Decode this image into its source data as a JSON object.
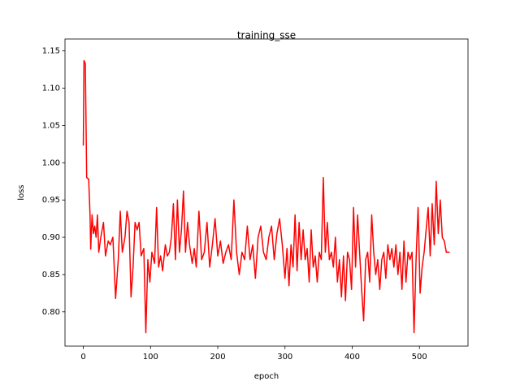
{
  "chart_data": {
    "type": "line",
    "title": "training_sse",
    "x_label": "epoch",
    "y_label": "loss",
    "color": "#ff0000",
    "x": [
      0,
      1,
      3,
      5,
      8,
      10,
      11,
      13,
      15,
      17,
      19,
      21,
      23,
      26,
      30,
      33,
      37,
      40,
      44,
      48,
      52,
      55,
      58,
      62,
      65,
      68,
      71,
      74,
      77,
      80,
      83,
      86,
      90,
      93,
      96,
      99,
      102,
      106,
      109,
      112,
      115,
      118,
      122,
      125,
      128,
      131,
      134,
      137,
      140,
      143,
      146,
      149,
      152,
      155,
      158,
      162,
      165,
      168,
      172,
      176,
      180,
      184,
      188,
      192,
      196,
      200,
      204,
      208,
      212,
      216,
      220,
      224,
      228,
      232,
      236,
      240,
      244,
      248,
      252,
      256,
      260,
      264,
      268,
      272,
      276,
      280,
      284,
      288,
      292,
      296,
      300,
      303,
      306,
      309,
      312,
      315,
      318,
      321,
      324,
      327,
      330,
      333,
      336,
      339,
      342,
      345,
      348,
      351,
      354,
      357,
      360,
      363,
      366,
      369,
      372,
      375,
      378,
      381,
      384,
      387,
      390,
      393,
      396,
      399,
      402,
      405,
      408,
      411,
      414,
      417,
      420,
      423,
      426,
      429,
      432,
      435,
      438,
      441,
      444,
      447,
      450,
      453,
      456,
      459,
      462,
      465,
      468,
      471,
      474,
      477,
      480,
      483,
      486,
      489,
      492,
      495,
      498,
      501,
      504,
      507,
      510,
      513,
      516,
      519,
      522,
      525,
      528,
      531,
      534,
      537,
      540,
      545
    ],
    "values": [
      1.023,
      1.137,
      1.133,
      0.98,
      0.978,
      0.93,
      0.884,
      0.93,
      0.905,
      0.915,
      0.9,
      0.93,
      0.88,
      0.9,
      0.92,
      0.875,
      0.895,
      0.89,
      0.9,
      0.818,
      0.87,
      0.935,
      0.88,
      0.9,
      0.935,
      0.92,
      0.82,
      0.86,
      0.92,
      0.91,
      0.92,
      0.875,
      0.885,
      0.772,
      0.87,
      0.84,
      0.88,
      0.865,
      0.94,
      0.86,
      0.875,
      0.855,
      0.89,
      0.875,
      0.88,
      0.9,
      0.945,
      0.87,
      0.95,
      0.88,
      0.91,
      0.962,
      0.88,
      0.92,
      0.89,
      0.865,
      0.885,
      0.86,
      0.935,
      0.87,
      0.88,
      0.92,
      0.86,
      0.89,
      0.925,
      0.875,
      0.895,
      0.865,
      0.88,
      0.89,
      0.87,
      0.95,
      0.88,
      0.85,
      0.88,
      0.87,
      0.915,
      0.87,
      0.89,
      0.845,
      0.9,
      0.915,
      0.88,
      0.87,
      0.9,
      0.915,
      0.87,
      0.905,
      0.925,
      0.89,
      0.845,
      0.885,
      0.835,
      0.89,
      0.86,
      0.93,
      0.855,
      0.92,
      0.87,
      0.91,
      0.87,
      0.885,
      0.84,
      0.91,
      0.86,
      0.875,
      0.84,
      0.88,
      0.87,
      0.98,
      0.88,
      0.92,
      0.87,
      0.88,
      0.86,
      0.9,
      0.84,
      0.87,
      0.82,
      0.875,
      0.815,
      0.88,
      0.87,
      0.83,
      0.94,
      0.86,
      0.93,
      0.88,
      0.83,
      0.788,
      0.87,
      0.88,
      0.84,
      0.93,
      0.88,
      0.85,
      0.87,
      0.83,
      0.87,
      0.88,
      0.845,
      0.89,
      0.87,
      0.885,
      0.86,
      0.89,
      0.85,
      0.88,
      0.83,
      0.895,
      0.84,
      0.88,
      0.87,
      0.88,
      0.772,
      0.87,
      0.94,
      0.825,
      0.86,
      0.88,
      0.91,
      0.94,
      0.875,
      0.945,
      0.89,
      0.975,
      0.905,
      0.95,
      0.9,
      0.895,
      0.88,
      0.88
    ],
    "xlim": [
      -27.25,
      572.25
    ],
    "xticks": [
      0,
      100,
      200,
      300,
      400,
      500
    ],
    "ylim": [
      0.754,
      1.166
    ],
    "yticks": [
      {
        "value": 0.8,
        "label": "0.80"
      },
      {
        "value": 0.85,
        "label": "0.85"
      },
      {
        "value": 0.9,
        "label": "0.90"
      },
      {
        "value": 0.95,
        "label": "0.95"
      },
      {
        "value": 1.0,
        "label": "1.00"
      },
      {
        "value": 1.05,
        "label": "1.05"
      },
      {
        "value": 1.1,
        "label": "1.10"
      },
      {
        "value": 1.15,
        "label": "1.15"
      }
    ]
  }
}
